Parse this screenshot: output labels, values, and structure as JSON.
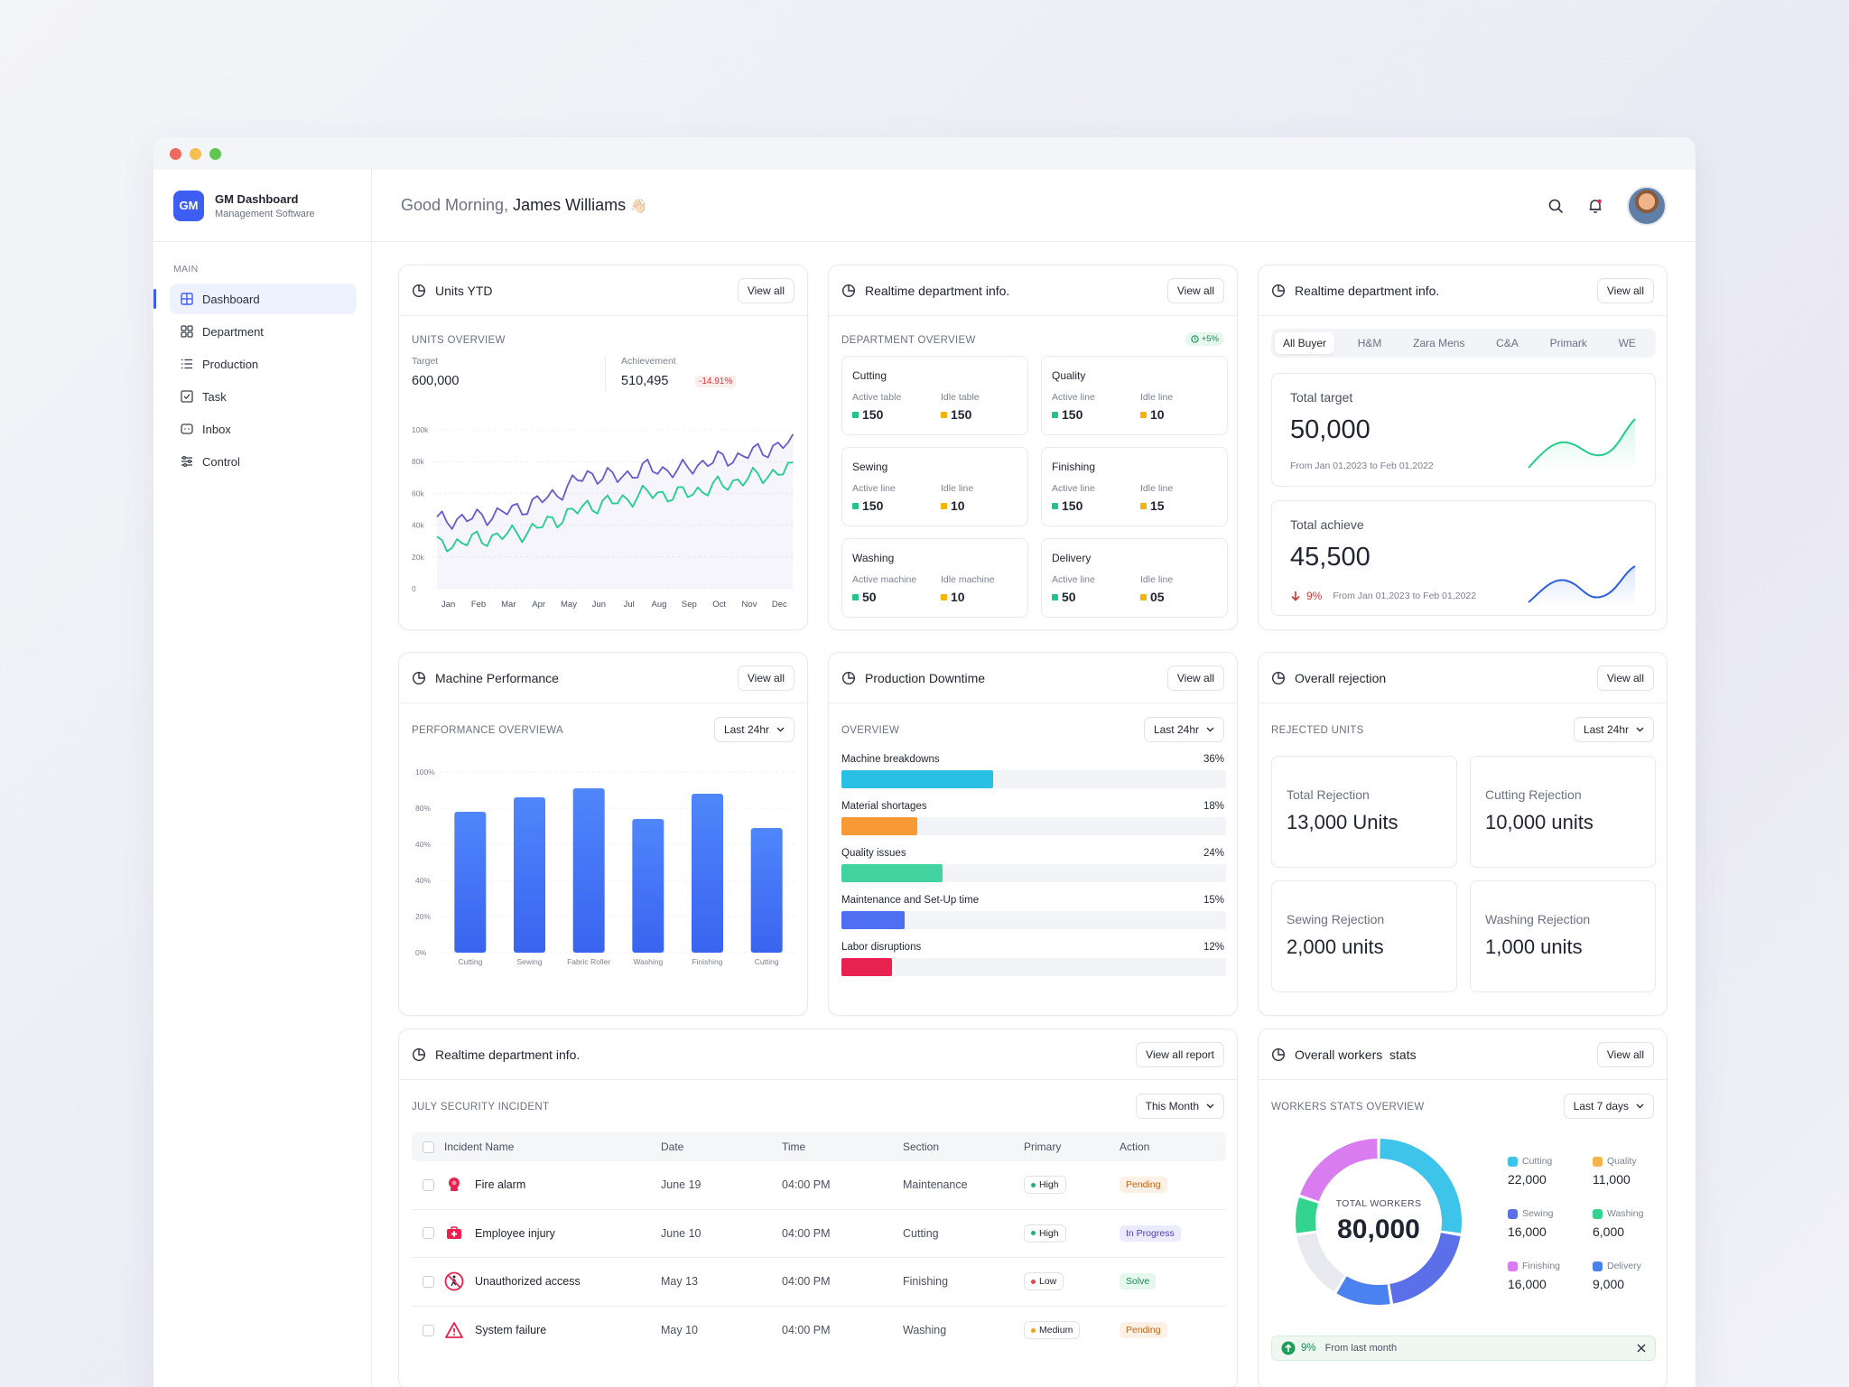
{
  "window_dots": [
    "#ed6a5e",
    "#f5bf4f",
    "#61c554"
  ],
  "brand": {
    "logo": "GM",
    "name": "GM Dashboard",
    "subtitle": "Management Software"
  },
  "sidebar": {
    "section": "MAIN",
    "items": [
      {
        "label": "Dashboard",
        "icon": "grid-icon",
        "active": true
      },
      {
        "label": "Department",
        "icon": "apps-icon"
      },
      {
        "label": "Production",
        "icon": "list-icon"
      },
      {
        "label": "Task",
        "icon": "checkbox-icon"
      },
      {
        "label": "Inbox",
        "icon": "inbox-icon"
      },
      {
        "label": "Control",
        "icon": "sliders-icon"
      }
    ]
  },
  "header": {
    "greeting": "Good Morning,",
    "user": "James Williams",
    "wave": "👋🏻"
  },
  "units": {
    "title": "Units YTD",
    "view_all": "View all",
    "subtitle": "UNITS OVERVIEW",
    "target_label": "Target",
    "target": "600,000",
    "achievement_label": "Achievement",
    "achievement": "510,495",
    "change": "-14.91%",
    "chart_data": {
      "type": "line",
      "categories": [
        "Jan",
        "Feb",
        "Mar",
        "Apr",
        "May",
        "Jun",
        "Jul",
        "Aug",
        "Sep",
        "Oct",
        "Nov",
        "Dec"
      ],
      "y_ticks": [
        "100k",
        "80k",
        "60k",
        "40k",
        "20k",
        "0"
      ],
      "ylim": [
        0,
        100000
      ],
      "series": [
        {
          "color": "#6a5acd",
          "values": [
            43000,
            44000,
            47000,
            52000,
            60000,
            72000,
            70000,
            76000,
            74000,
            80000,
            83000,
            88000
          ]
        },
        {
          "color": "#22cc8a",
          "values": [
            27000,
            30000,
            33000,
            36000,
            44000,
            52000,
            55000,
            60000,
            59000,
            63000,
            68000,
            72000
          ]
        }
      ]
    }
  },
  "dept": {
    "title": "Realtime department info.",
    "view_all": "View all",
    "subtitle": "DEPARTMENT OVERVIEW",
    "badge": "+5%",
    "items": [
      {
        "name": "Cutting",
        "a_label": "Active table",
        "a_val": "150",
        "b_label": "Idle table",
        "b_val": "150"
      },
      {
        "name": "Quality",
        "a_label": "Active line",
        "a_val": "150",
        "b_label": "Idle line",
        "b_val": "10"
      },
      {
        "name": "Sewing",
        "a_label": "Active line",
        "a_val": "150",
        "b_label": "Idle line",
        "b_val": "10"
      },
      {
        "name": "Finishing",
        "a_label": "Active line",
        "a_val": "150",
        "b_label": "Idle line",
        "b_val": "15"
      },
      {
        "name": "Washing",
        "a_label": "Active machine",
        "a_val": "50",
        "b_label": "Idle machine",
        "b_val": "10"
      },
      {
        "name": "Delivery",
        "a_label": "Active line",
        "a_val": "50",
        "b_label": "Idle line",
        "b_val": "05"
      }
    ]
  },
  "buyer": {
    "title": "Realtime department info.",
    "view_all": "View all",
    "tabs": [
      "All Buyer",
      "H&M",
      "Zara Mens",
      "C&A",
      "Primark",
      "WE"
    ],
    "target_label": "Total target",
    "target": "50,000",
    "target_range": "From Jan 01,2023 to Feb 01,2022",
    "achieve_label": "Total achieve",
    "achieve": "45,500",
    "achieve_change": "9%",
    "achieve_range": "From Jan 01,2023 to Feb 01,2022"
  },
  "machine": {
    "title": "Machine Performance",
    "view_all": "View all",
    "subtitle": "PERFORMANCE OVERVIEWA",
    "range": "Last 24hr",
    "chart_data": {
      "type": "bar",
      "categories": [
        "Cutting",
        "Sewing",
        "Fabric Roller",
        "Washing",
        "Finishing",
        "Cutting"
      ],
      "values": [
        78,
        86,
        91,
        74,
        88,
        69
      ],
      "y_ticks": [
        "100%",
        "80%",
        "40%",
        "40%",
        "20%",
        "0%"
      ],
      "ylim": [
        0,
        100
      ]
    }
  },
  "downtime": {
    "title": "Production Downtime",
    "view_all": "View all",
    "subtitle": "OVERVIEW",
    "range": "Last 24hr",
    "chart_data": {
      "type": "bar",
      "items": [
        {
          "label": "Machine breakdowns",
          "pct": "36%",
          "value": 36,
          "color": "#29c0e3"
        },
        {
          "label": "Material shortages",
          "pct": "18%",
          "value": 18,
          "color": "#f79a36"
        },
        {
          "label": "Quality issues",
          "pct": "24%",
          "value": 24,
          "color": "#43d3a0"
        },
        {
          "label": "Maintenance and Set-Up time",
          "pct": "15%",
          "value": 15,
          "color": "#4f6ff2"
        },
        {
          "label": "Labor disruptions",
          "pct": "12%",
          "value": 12,
          "color": "#e8224f"
        }
      ]
    }
  },
  "rejection": {
    "title": "Overall rejection",
    "view_all": "View all",
    "subtitle": "REJECTED UNITS",
    "range": "Last 24hr",
    "items": [
      {
        "label": "Total Rejection",
        "value": "13,000 Units"
      },
      {
        "label": "Cutting Rejection",
        "value": "10,000 units"
      },
      {
        "label": "Sewing Rejection",
        "value": "2,000 units"
      },
      {
        "label": "Washing Rejection",
        "value": "1,000 units"
      }
    ]
  },
  "incidents": {
    "title": "Realtime department info.",
    "view_all": "View all report",
    "subtitle": "JULY SECURITY INCIDENT",
    "range": "This Month",
    "columns": [
      "Incident Name",
      "Date",
      "Time",
      "Section",
      "Primary",
      "Action"
    ],
    "rows": [
      {
        "name": "Fire alarm",
        "icon": "fire-alarm-icon",
        "date": "June 19",
        "time": "04:00 PM",
        "section": "Maintenance",
        "priority": "High",
        "pcolor": "#22b07d",
        "action": "Pending",
        "abg": "#fdf1e6",
        "afg": "#c0651a"
      },
      {
        "name": "Employee injury",
        "icon": "first-aid-icon",
        "date": "June 10",
        "time": "04:00 PM",
        "section": "Cutting",
        "priority": "High",
        "pcolor": "#22b07d",
        "action": "In Progress",
        "abg": "#eceafd",
        "afg": "#4a3fb8"
      },
      {
        "name": "Unauthorized access",
        "icon": "no-entry-icon",
        "date": "May 13",
        "time": "04:00 PM",
        "section": "Finishing",
        "priority": "Low",
        "pcolor": "#e24a4a",
        "action": "Solve",
        "abg": "#e6f7ee",
        "afg": "#1f8a55"
      },
      {
        "name": "System failure",
        "icon": "warning-icon",
        "date": "May 10",
        "time": "04:00 PM",
        "section": "Washing",
        "priority": "Medium",
        "pcolor": "#f0a020",
        "action": "Pending",
        "abg": "#fdf1e6",
        "afg": "#c0651a"
      }
    ]
  },
  "workers": {
    "title": "Overall workers  stats",
    "view_all": "View all",
    "subtitle": "WORKERS STATS OVERVIEW",
    "range": "Last 7 days",
    "total_label": "TOTAL WORKERS",
    "total": "80,000",
    "change": "9%",
    "change_text": "From last month",
    "chart_data": {
      "type": "pie",
      "slices": [
        {
          "label": "Cutting",
          "value": 22000,
          "display": "22,000",
          "color": "#3ec3ea"
        },
        {
          "label": "Quality",
          "value": 11000,
          "display": "11,000",
          "color": "#f4b24a"
        },
        {
          "label": "Sewing",
          "value": 16000,
          "display": "16,000",
          "color": "#5b6fe8"
        },
        {
          "label": "Washing",
          "value": 6000,
          "display": "6,000",
          "color": "#33d48f"
        },
        {
          "label": "Finishing",
          "value": 16000,
          "display": "16,000",
          "color": "#d97cf0"
        },
        {
          "label": "Delivery",
          "value": 9000,
          "display": "9,000",
          "color": "#4c82f0"
        }
      ]
    }
  }
}
